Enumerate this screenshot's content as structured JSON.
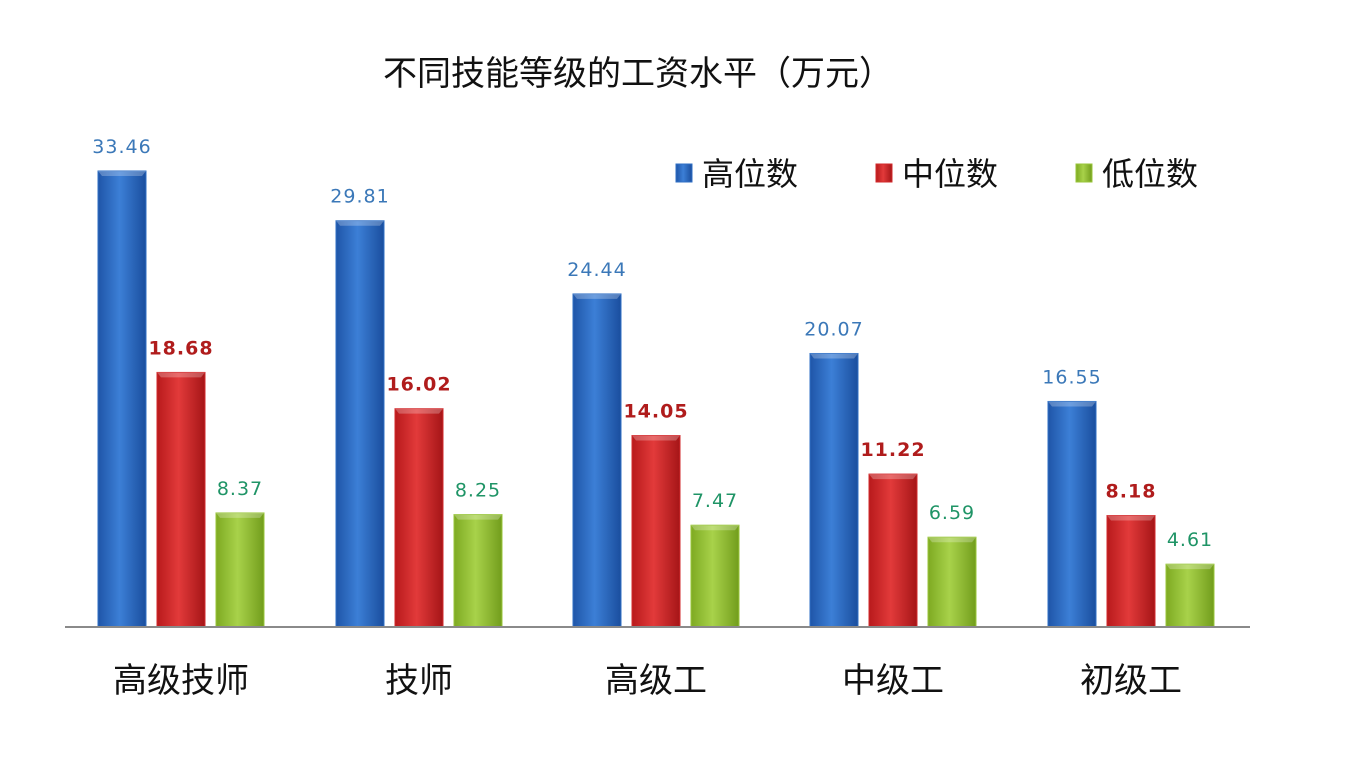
{
  "chart_data": {
    "type": "bar",
    "title": "不同技能等级的工资水平（万元）",
    "xlabel": "",
    "ylabel": "",
    "categories": [
      "高级技师",
      "技师",
      "高级工",
      "中级工",
      "初级工"
    ],
    "series": [
      {
        "name": "高位数",
        "color": "#2f6fc4",
        "label_color": "#3b78b8",
        "values": [
          33.46,
          29.81,
          24.44,
          20.07,
          16.55
        ]
      },
      {
        "name": "中位数",
        "color": "#d2292b",
        "label_color": "#b01c1c",
        "values": [
          18.68,
          16.02,
          14.05,
          11.22,
          8.18
        ]
      },
      {
        "name": "低位数",
        "color": "#98c53a",
        "label_color": "#1f9466",
        "values": [
          8.37,
          8.25,
          7.47,
          6.59,
          4.61
        ]
      }
    ],
    "ylim": [
      0,
      35
    ],
    "grid": false,
    "legend_position": "top-right",
    "show_y_axis": false
  }
}
